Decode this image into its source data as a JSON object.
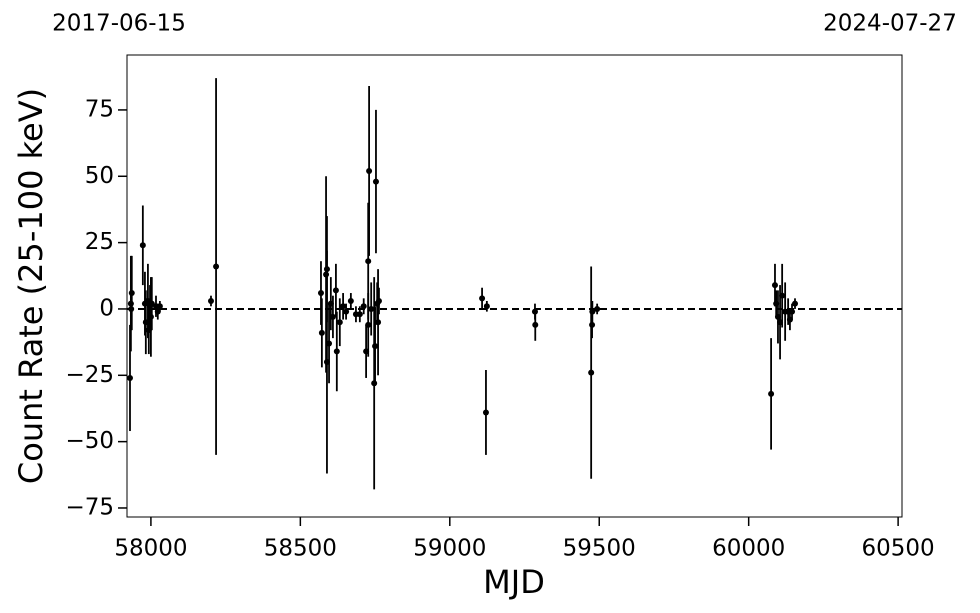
{
  "chart_data": {
    "type": "errorbar",
    "top_labels": [
      "2017-06-15",
      "2024-07-27"
    ],
    "x_label": "MJD",
    "y_label": "Count Rate (25-100 keV)",
    "xlim": [
      57920,
      60513
    ],
    "ylim": [
      -78.4,
      95.7
    ],
    "xticks": [
      58000,
      58500,
      59000,
      59500,
      60000,
      60500
    ],
    "yticks": [
      {
        "value": -75,
        "label": "−75"
      },
      {
        "value": -50,
        "label": "−50"
      },
      {
        "value": -25,
        "label": "−25"
      },
      0,
      25,
      50,
      75
    ],
    "hline": 0,
    "series": [
      {
        "color": "#000000",
        "x": [
          57930,
          57933,
          57936,
          57934,
          57973,
          57980,
          57983,
          57990,
          57993,
          57997,
          58000,
          58003,
          58017,
          58023,
          58030,
          58201,
          58218,
          58569,
          58572,
          58586,
          58589,
          58589,
          58596,
          58602,
          58609,
          58619,
          58622,
          58632,
          58643,
          58653,
          58669,
          58686,
          58699,
          58712,
          58720,
          58727,
          58730,
          58727,
          58737,
          58747,
          58750,
          58753,
          58757,
          58760,
          58763,
          59108,
          59121,
          59124,
          59285,
          59286,
          59473,
          59476,
          59477,
          59493,
          60075,
          60088,
          60092,
          60098,
          60105,
          60112,
          60122,
          60132,
          60138,
          60145,
          60155
        ],
        "values": [
          -26,
          2,
          6,
          0,
          24,
          2,
          -5,
          3,
          -8,
          1,
          -3,
          2,
          1,
          -1,
          1,
          3,
          16,
          6,
          -9,
          13,
          15,
          -20,
          -13,
          2,
          -3,
          7,
          -16,
          -5,
          1,
          -1,
          3,
          -2,
          -2,
          1,
          -16,
          18,
          52,
          -6,
          0,
          -28,
          -14,
          48,
          2,
          -5,
          3,
          4,
          -39,
          1,
          -1,
          -6,
          -24,
          -6,
          -1,
          0,
          -32,
          9,
          2,
          -3,
          -5,
          5,
          -1,
          -1,
          -4,
          -1,
          2
        ],
        "errors": [
          20,
          18,
          14,
          8,
          15,
          12,
          12,
          14,
          9,
          8,
          15,
          10,
          4,
          3,
          2,
          2,
          71,
          12,
          13,
          37,
          20,
          42,
          15,
          10,
          8,
          10,
          15,
          9,
          5,
          3,
          3,
          3,
          3,
          3,
          10,
          22,
          32,
          12,
          10,
          40,
          15,
          27,
          8,
          20,
          5,
          4,
          16,
          2,
          3,
          6,
          40,
          5,
          4,
          2,
          21,
          8,
          5,
          10,
          14,
          12,
          11,
          5,
          4,
          3,
          2
        ]
      }
    ]
  }
}
